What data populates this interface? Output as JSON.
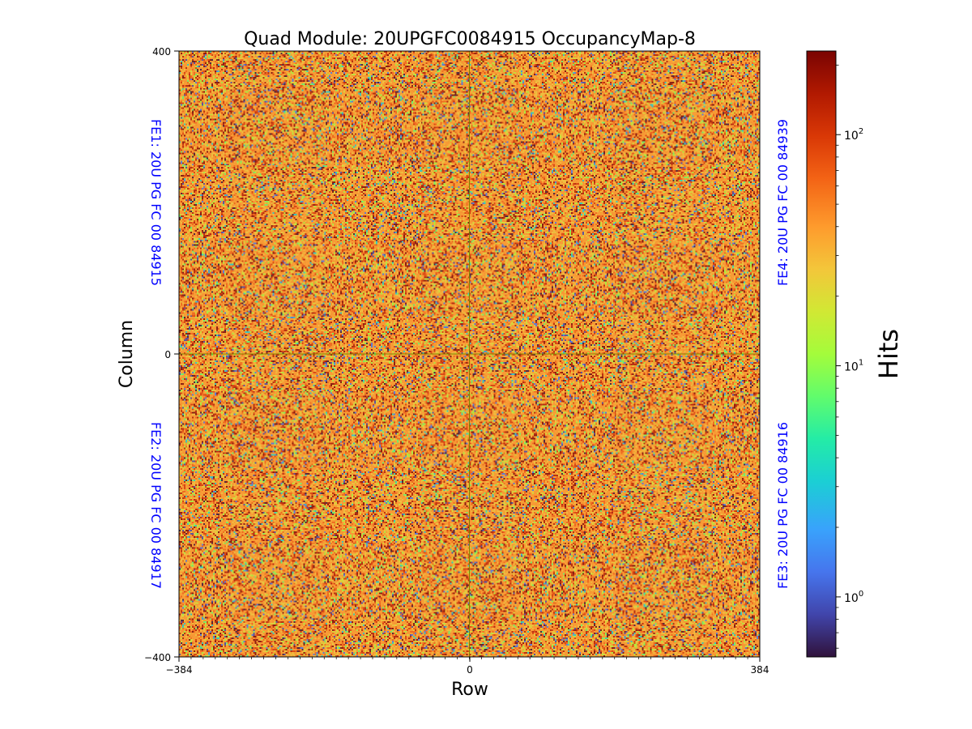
{
  "chart_data": {
    "type": "heatmap",
    "title": "Quad Module: 20UPGFC0084915 OccupancyMap-8",
    "xlabel": "Row",
    "ylabel": "Column",
    "xlim": [
      -384,
      384
    ],
    "ylim": [
      -400,
      400
    ],
    "x_ticks": [
      "−384",
      "0",
      "384"
    ],
    "y_ticks": [
      "400",
      "0",
      "−400"
    ],
    "divider_lines": {
      "x": 0,
      "y": 0
    },
    "front_ends": [
      {
        "name": "FE1",
        "label": "FE1: 20U PG FC 00 84915",
        "quadrant": "top-left"
      },
      {
        "name": "FE2",
        "label": "FE2: 20U PG FC 00 84917",
        "quadrant": "bottom-left"
      },
      {
        "name": "FE3",
        "label": "FE3: 20U PG FC 00 84916",
        "quadrant": "bottom-right"
      },
      {
        "name": "FE4",
        "label": "FE4: 20U PG FC 00 84939",
        "quadrant": "top-right"
      }
    ],
    "colorbar": {
      "label": "Hits",
      "scale": "log",
      "colormap": "turbo",
      "range": [
        0.55,
        230
      ],
      "ticks": [
        {
          "value": 1,
          "base": "10",
          "exp": "0"
        },
        {
          "value": 10,
          "base": "10",
          "exp": "1"
        },
        {
          "value": 100,
          "base": "10",
          "exp": "2"
        }
      ]
    },
    "distribution_note": "Dense random occupancy; dominant hits roughly 20-100 (orange), with scattered low (blue) and high (dark red) pixels."
  },
  "colors": {
    "fe_label": "#0000ff",
    "divider": "#808000",
    "text": "#000000"
  }
}
